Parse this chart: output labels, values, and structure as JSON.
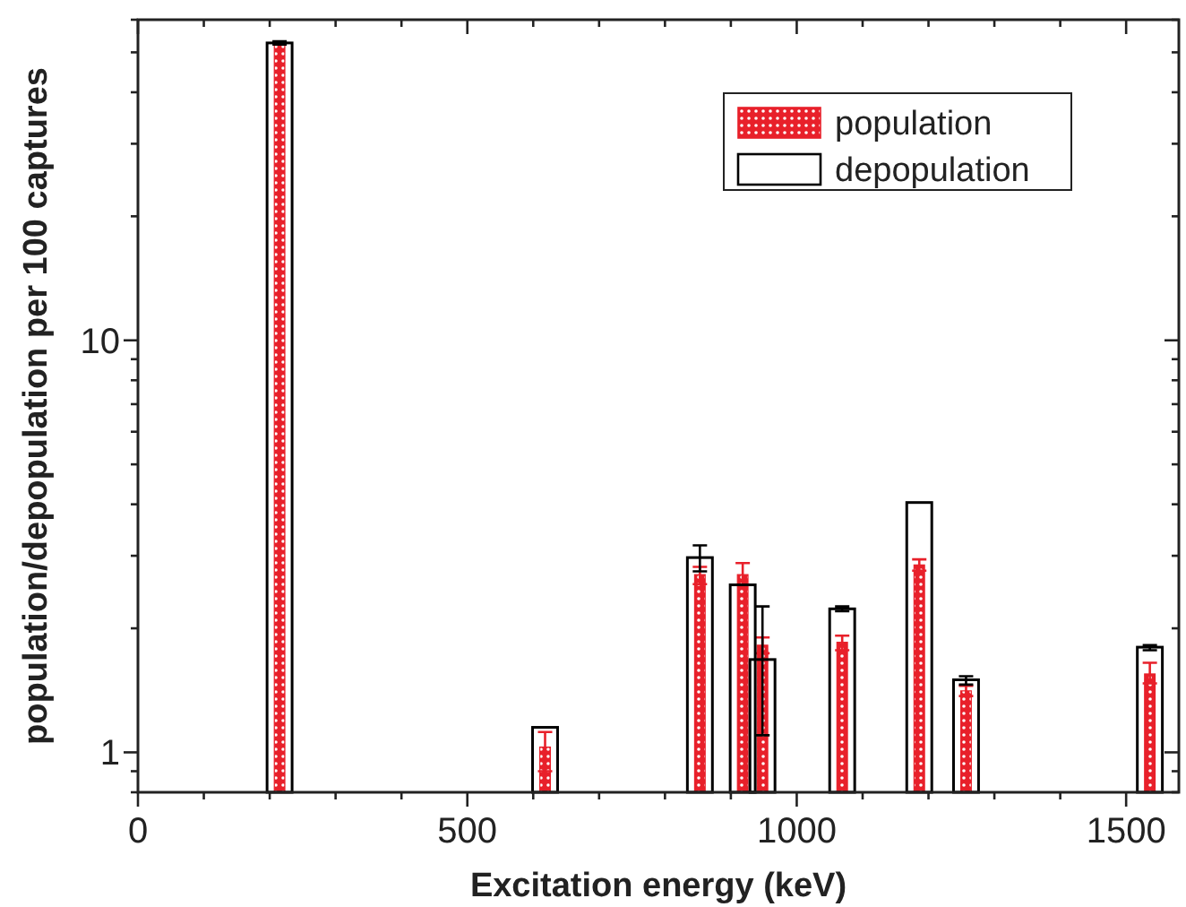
{
  "chart_data": {
    "type": "bar",
    "xlabel": "Excitation energy (keV)",
    "ylabel": "population/depopulation per 100 captures",
    "x": [
      215,
      618,
      853,
      918,
      948,
      1069,
      1186,
      1257,
      1536
    ],
    "series": [
      {
        "name": "depopulation",
        "color": "#000000",
        "values": [
          52.7,
          1.15,
          2.97,
          2.55,
          1.68,
          2.23,
          4.04,
          1.5,
          1.8
        ],
        "errors": [
          [
            52.2,
            53.2
          ],
          null,
          [
            2.75,
            3.18
          ],
          null,
          [
            1.1,
            2.26
          ],
          [
            2.2,
            2.26
          ],
          null,
          [
            1.46,
            1.53
          ],
          [
            1.77,
            1.82
          ]
        ]
      },
      {
        "name": "population",
        "color": "#e8202a",
        "values": [
          52,
          1.03,
          2.7,
          2.7,
          1.82,
          1.85,
          2.85,
          1.41,
          1.55
        ],
        "errors": [
          null,
          [
            0.9,
            1.12
          ],
          [
            2.56,
            2.82
          ],
          [
            2.55,
            2.88
          ],
          [
            1.74,
            1.9
          ],
          [
            1.77,
            1.92
          ],
          [
            2.76,
            2.94
          ],
          [
            1.37,
            1.45
          ],
          [
            1.47,
            1.65
          ]
        ]
      }
    ],
    "xlim": [
      0,
      1580
    ],
    "xticks": [
      0,
      {
        "value": 100,
        "label": null
      },
      {
        "value": 200,
        "label": null
      },
      {
        "value": 300,
        "label": null
      },
      {
        "value": 400,
        "label": null
      },
      500,
      {
        "value": 600,
        "label": null
      },
      {
        "value": 700,
        "label": null
      },
      {
        "value": 800,
        "label": null
      },
      {
        "value": 900,
        "label": null
      },
      1000,
      {
        "value": 1100,
        "label": null
      },
      {
        "value": 1200,
        "label": null
      },
      {
        "value": 1300,
        "label": null
      },
      {
        "value": 1400,
        "label": null
      },
      1500
    ],
    "ylim": [
      0.8,
      60
    ],
    "yticks": [
      {
        "value": 0.8,
        "label": null
      },
      {
        "value": 0.9,
        "label": null
      },
      1,
      {
        "value": 2,
        "label": null
      },
      {
        "value": 3,
        "label": null
      },
      {
        "value": 4,
        "label": null
      },
      {
        "value": 5,
        "label": null
      },
      {
        "value": 6,
        "label": null
      },
      {
        "value": 7,
        "label": null
      },
      {
        "value": 8,
        "label": null
      },
      {
        "value": 9,
        "label": null
      },
      10,
      {
        "value": 20,
        "label": null
      },
      {
        "value": 30,
        "label": null
      },
      {
        "value": 40,
        "label": null
      },
      {
        "value": 50,
        "label": null
      },
      {
        "value": 60,
        "label": null
      }
    ],
    "log": true,
    "legend": "top right"
  }
}
